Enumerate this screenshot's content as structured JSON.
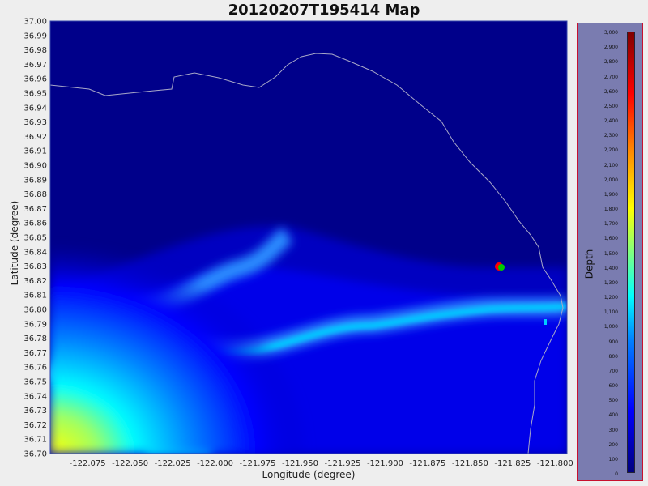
{
  "title": "20120207T195414 Map",
  "chart_data": {
    "type": "heatmap",
    "title": "20120207T195414 Map",
    "xlabel": "Longitude (degree)",
    "ylabel": "Latitude (degree)",
    "xlim": [
      -122.097,
      -121.793
    ],
    "ylim": [
      36.7,
      37.0
    ],
    "x_ticks": [
      "-122.075",
      "-122.050",
      "-122.025",
      "-122.000",
      "-121.975",
      "-121.950",
      "-121.925",
      "-121.900",
      "-121.875",
      "-121.850",
      "-121.825",
      "-121.800"
    ],
    "y_ticks": [
      "37.00",
      "36.99",
      "36.98",
      "36.97",
      "36.96",
      "36.95",
      "36.94",
      "36.93",
      "36.92",
      "36.91",
      "36.90",
      "36.89",
      "36.88",
      "36.87",
      "36.86",
      "36.85",
      "36.84",
      "36.83",
      "36.82",
      "36.81",
      "36.80",
      "36.79",
      "36.78",
      "36.77",
      "36.76",
      "36.75",
      "36.74",
      "36.73",
      "36.72",
      "36.71",
      "36.70"
    ],
    "colorbar": {
      "label": "Depth",
      "min": 0,
      "max": 3000,
      "ticks": [
        "3,000",
        "2,900",
        "2,800",
        "2,700",
        "2,600",
        "2,500",
        "2,400",
        "2,300",
        "2,200",
        "2,100",
        "2,000",
        "1,900",
        "1,800",
        "1,700",
        "1,600",
        "1,500",
        "1,400",
        "1,300",
        "1,200",
        "1,100",
        "1,000",
        "900",
        "800",
        "700",
        "600",
        "500",
        "400",
        "300",
        "200",
        "100",
        "0"
      ]
    },
    "markers": [
      {
        "name": "vehicle-position",
        "lon": -121.829,
        "lat": 36.83,
        "colors": [
          "#ff0000",
          "#00cc00"
        ]
      },
      {
        "name": "buoy",
        "lon": -121.799,
        "lat": 36.792,
        "color": "#00ccff"
      }
    ]
  }
}
